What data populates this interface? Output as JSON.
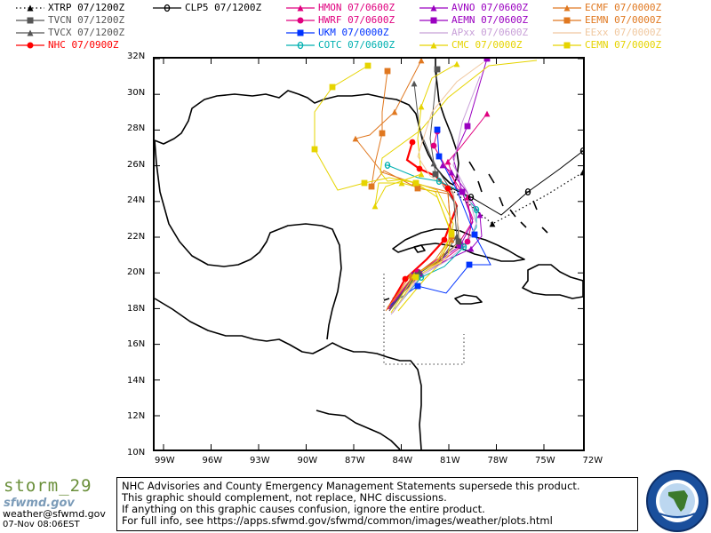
{
  "legend": [
    {
      "label": "XTRP 07/1200Z",
      "color": "#000000",
      "marker": "triangle",
      "dash": "dots",
      "col": 0,
      "row": 0
    },
    {
      "label": "TVCN 07/1200Z",
      "color": "#555555",
      "marker": "square",
      "dash": "solid",
      "col": 0,
      "row": 1
    },
    {
      "label": "TVCX 07/1200Z",
      "color": "#555555",
      "marker": "triangle",
      "dash": "solid",
      "col": 0,
      "row": 2
    },
    {
      "label": "NHC 07/0900Z",
      "color": "#ff0000",
      "marker": "circle",
      "dash": "solid",
      "col": 0,
      "row": 3
    },
    {
      "label": "CLP5 07/1200Z",
      "color": "#000000",
      "marker": "theta",
      "dash": "solid",
      "col": 1,
      "row": 0
    },
    {
      "label": "HMON 07/0600Z",
      "color": "#e0007f",
      "marker": "triangle",
      "dash": "solid",
      "col": 2,
      "row": 0
    },
    {
      "label": "HWRF 07/0600Z",
      "color": "#e0007f",
      "marker": "circle",
      "dash": "solid",
      "col": 2,
      "row": 1
    },
    {
      "label": "UKM 07/0000Z",
      "color": "#0033ff",
      "marker": "square",
      "dash": "solid",
      "col": 2,
      "row": 2
    },
    {
      "label": "COTC 07/0600Z",
      "color": "#00b0b0",
      "marker": "theta",
      "dash": "solid",
      "col": 2,
      "row": 3
    },
    {
      "label": "AVNO 07/0600Z",
      "color": "#9a00c0",
      "marker": "triangle",
      "dash": "solid",
      "col": 3,
      "row": 0
    },
    {
      "label": "AEMN 07/0600Z",
      "color": "#9a00c0",
      "marker": "square",
      "dash": "solid",
      "col": 3,
      "row": 1
    },
    {
      "label": "APxx 07/0600Z",
      "color": "#c8a0d8",
      "marker": "none",
      "dash": "solid",
      "col": 3,
      "row": 2
    },
    {
      "label": "CMC 07/0000Z",
      "color": "#e6d400",
      "marker": "triangle",
      "dash": "solid",
      "col": 3,
      "row": 3
    },
    {
      "label": "ECMF 07/0000Z",
      "color": "#e07820",
      "marker": "triangle",
      "dash": "solid",
      "col": 4,
      "row": 0
    },
    {
      "label": "EEMN 07/0000Z",
      "color": "#e07820",
      "marker": "square",
      "dash": "solid",
      "col": 4,
      "row": 1
    },
    {
      "label": "EExx 07/0000Z",
      "color": "#f0c8a0",
      "marker": "none",
      "dash": "solid",
      "col": 4,
      "row": 2
    },
    {
      "label": "CEMN 07/0000Z",
      "color": "#e6d400",
      "marker": "square",
      "dash": "solid",
      "col": 4,
      "row": 3
    }
  ],
  "axes": {
    "lat_labels": [
      "32N",
      "30N",
      "28N",
      "26N",
      "24N",
      "22N",
      "20N",
      "18N",
      "16N",
      "14N",
      "12N",
      "10N"
    ],
    "lon_labels": [
      "99W",
      "96W",
      "93W",
      "90W",
      "87W",
      "84W",
      "81W",
      "78W",
      "75W",
      "72W"
    ]
  },
  "footer": {
    "storm_name": "storm_29",
    "site": "sfwmd.gov",
    "contact": "weather@sfwmd.gov",
    "timestamp": "07-Nov 08:06EST"
  },
  "disclaimer": [
    "NHC Advisories and County Emergency Management Statements supersede this product.",
    "This graphic should complement, not replace, NHC discussions.",
    "If anything on this graphic causes confusion, ignore the entire product.",
    "For full info, see  https://apps.sfwmd.gov/sfwmd/common/images/weather/plots.html"
  ],
  "seal_text": "SOUTH FLORIDA WATER MANAGEMENT DISTRICT"
}
